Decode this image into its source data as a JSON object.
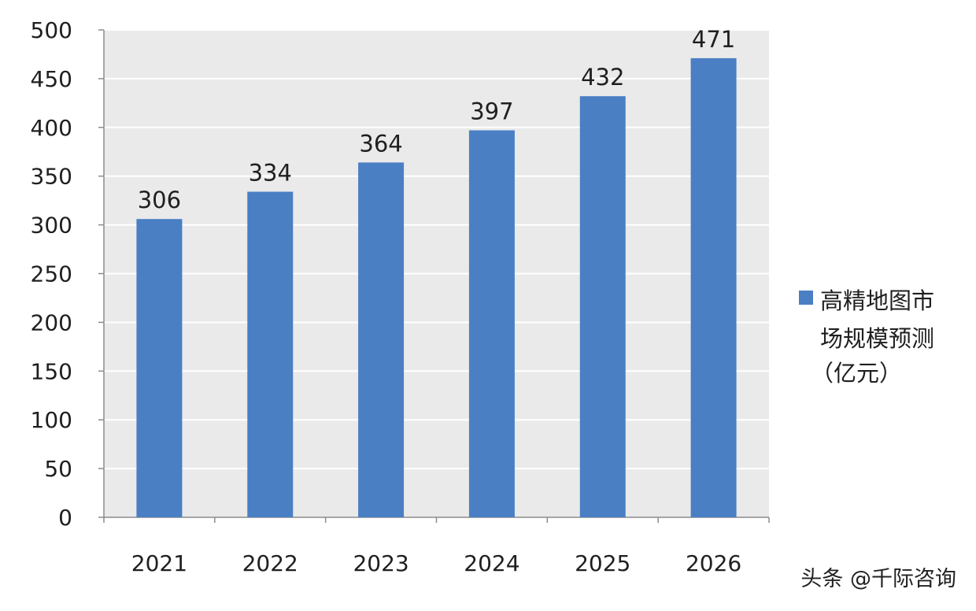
{
  "chart_data": {
    "type": "bar",
    "categories": [
      "2021",
      "2022",
      "2023",
      "2024",
      "2025",
      "2026"
    ],
    "series": [
      {
        "name": "高精地图市场规模预测（亿元）",
        "values": [
          306,
          334,
          364,
          397,
          432,
          471
        ]
      }
    ],
    "data_labels": [
      "306",
      "334",
      "364",
      "397",
      "432",
      "471"
    ],
    "y_ticks": [
      "0",
      "50",
      "100",
      "150",
      "200",
      "250",
      "300",
      "350",
      "400",
      "450",
      "500"
    ],
    "ylim": [
      0,
      500
    ],
    "grid": true,
    "legend_position": "right",
    "legend_lines": [
      "高精地图市",
      "场规模预测",
      "（亿元）"
    ],
    "title": "",
    "xlabel": "",
    "ylabel": ""
  },
  "watermark": {
    "credit": "头条 @千际咨询"
  },
  "colors": {
    "bar": "#4a7fc4",
    "plot_background": "#eaeaea",
    "grid": "#ffffff",
    "axis": "#8c8c8c",
    "text": "#1f1f1f"
  }
}
